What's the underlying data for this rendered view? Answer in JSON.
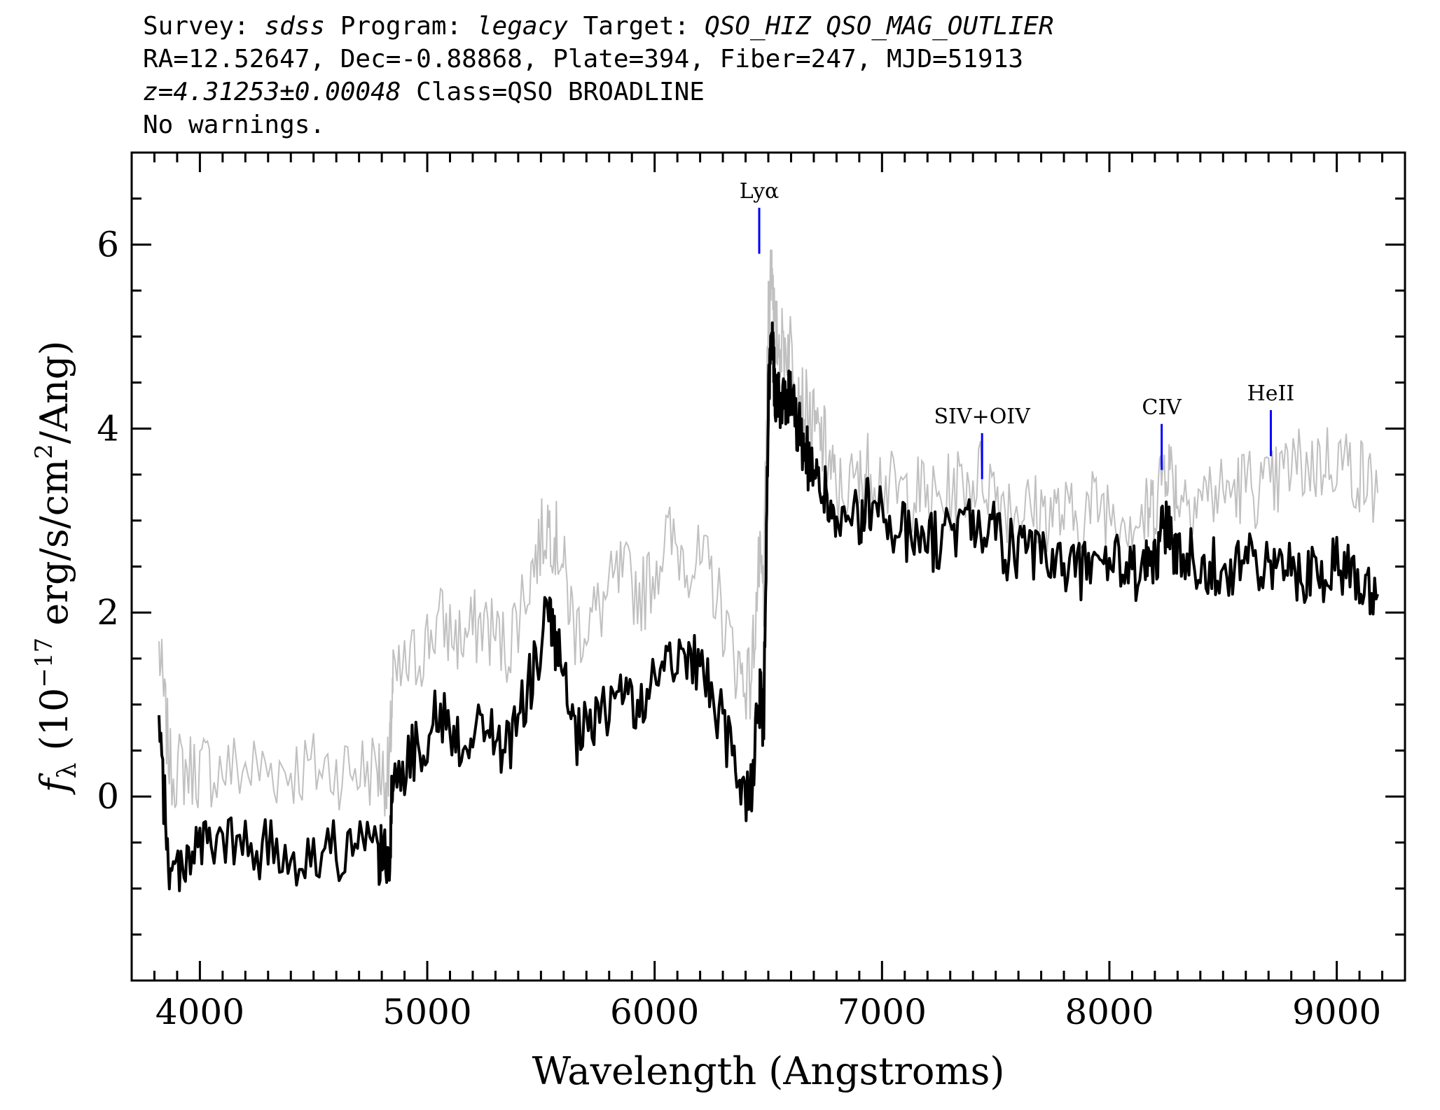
{
  "header": {
    "survey_label": "Survey:",
    "survey": "sdss",
    "program_label": "Program:",
    "program": "legacy",
    "target_label": "Target:",
    "target": "QSO_HIZ QSO_MAG_OUTLIER",
    "coords": "RA=12.52647, Dec=-0.88868, Plate=394, Fiber=247, MJD=51913",
    "redshift": "z=4.31253±0.00048",
    "class_text": "Class=QSO BROADLINE",
    "warnings": "No warnings."
  },
  "chart_data": {
    "type": "line",
    "xlabel": "Wavelength (Angstroms)",
    "ylabel_parts": {
      "f": "f",
      "sub": "λ",
      "open": " (10",
      "exp": "−17",
      "mid": " erg/s/cm",
      "exp2": "2",
      "close": "/Ang)"
    },
    "xlim": [
      3700,
      9300
    ],
    "ylim": [
      -2,
      7
    ],
    "xticks": [
      4000,
      5000,
      6000,
      7000,
      8000,
      9000
    ],
    "yticks": [
      0,
      2,
      4,
      6
    ],
    "series": [
      {
        "role": "flux",
        "color": "#000000",
        "x": [
          3820,
          3870,
          3950,
          4050,
          4200,
          4350,
          4500,
          4650,
          4780,
          4830,
          4850,
          4950,
          5050,
          5150,
          5250,
          5350,
          5450,
          5530,
          5580,
          5650,
          5750,
          5850,
          5950,
          6050,
          6150,
          6250,
          6350,
          6420,
          6460,
          6480,
          6500,
          6515,
          6530,
          6560,
          6600,
          6650,
          6700,
          6750,
          6800,
          6900,
          6950,
          7050,
          7150,
          7250,
          7350,
          7450,
          7550,
          7650,
          7750,
          7850,
          7950,
          8050,
          8150,
          8200,
          8250,
          8300,
          8400,
          8500,
          8600,
          8700,
          8800,
          8900,
          9000,
          9100,
          9180
        ],
        "y": [
          0.7,
          -0.9,
          -0.6,
          -0.5,
          -0.55,
          -0.6,
          -0.65,
          -0.55,
          -0.6,
          -0.75,
          0.2,
          0.5,
          0.9,
          0.6,
          0.8,
          0.5,
          1.2,
          2.0,
          1.5,
          0.6,
          0.8,
          1.2,
          0.9,
          1.6,
          1.5,
          1.2,
          0.3,
          0.0,
          1.1,
          0.8,
          4.2,
          5.2,
          4.4,
          4.3,
          4.4,
          3.8,
          3.5,
          3.3,
          2.9,
          3.0,
          3.2,
          2.9,
          2.85,
          2.75,
          2.95,
          3.0,
          2.7,
          2.6,
          2.55,
          2.45,
          2.6,
          2.5,
          2.4,
          2.6,
          3.0,
          2.6,
          2.55,
          2.5,
          2.55,
          2.45,
          2.5,
          2.4,
          2.55,
          2.45,
          2.2
        ]
      },
      {
        "role": "error-envelope",
        "color": "#c0c0c0",
        "x": [
          3820,
          3870,
          3950,
          4050,
          4200,
          4350,
          4500,
          4650,
          4780,
          4830,
          4850,
          4950,
          5050,
          5150,
          5250,
          5350,
          5450,
          5530,
          5580,
          5650,
          5750,
          5850,
          5950,
          6050,
          6150,
          6250,
          6350,
          6420,
          6460,
          6480,
          6500,
          6515,
          6530,
          6560,
          6600,
          6650,
          6700,
          6750,
          6800,
          6900,
          6950,
          7050,
          7150,
          7250,
          7350,
          7450,
          7550,
          7650,
          7750,
          7850,
          7950,
          8050,
          8150,
          8200,
          8250,
          8300,
          8400,
          8500,
          8600,
          8700,
          8800,
          8900,
          9000,
          9100,
          9180
        ],
        "y": [
          1.6,
          0.3,
          0.3,
          0.3,
          0.3,
          0.3,
          0.3,
          0.3,
          0.3,
          0.2,
          1.2,
          1.5,
          1.9,
          1.7,
          1.9,
          1.6,
          2.4,
          3.0,
          2.7,
          1.8,
          2.0,
          2.4,
          2.2,
          2.8,
          2.6,
          2.4,
          1.5,
          1.2,
          2.5,
          2.2,
          5.2,
          5.9,
          5.0,
          4.9,
          4.9,
          4.3,
          4.0,
          3.8,
          3.3,
          3.4,
          3.6,
          3.3,
          3.3,
          3.2,
          3.4,
          3.5,
          3.2,
          3.1,
          3.1,
          3.0,
          3.2,
          3.1,
          3.0,
          3.2,
          3.7,
          3.3,
          3.3,
          3.3,
          3.4,
          3.3,
          3.6,
          3.6,
          3.7,
          3.5,
          3.3
        ]
      }
    ],
    "line_markers": [
      {
        "label": "Lyα",
        "x": 6460,
        "y_bottom": 5.9,
        "y_top": 6.4,
        "color": "#0000ff"
      },
      {
        "label": "SIV+OIV",
        "x": 7440,
        "y_bottom": 3.45,
        "y_top": 3.95,
        "color": "#0000ff"
      },
      {
        "label": "CIV",
        "x": 8230,
        "y_bottom": 3.55,
        "y_top": 4.05,
        "color": "#0000ff"
      },
      {
        "label": "HeII",
        "x": 8710,
        "y_bottom": 3.7,
        "y_top": 4.2,
        "color": "#0000ff"
      }
    ]
  }
}
